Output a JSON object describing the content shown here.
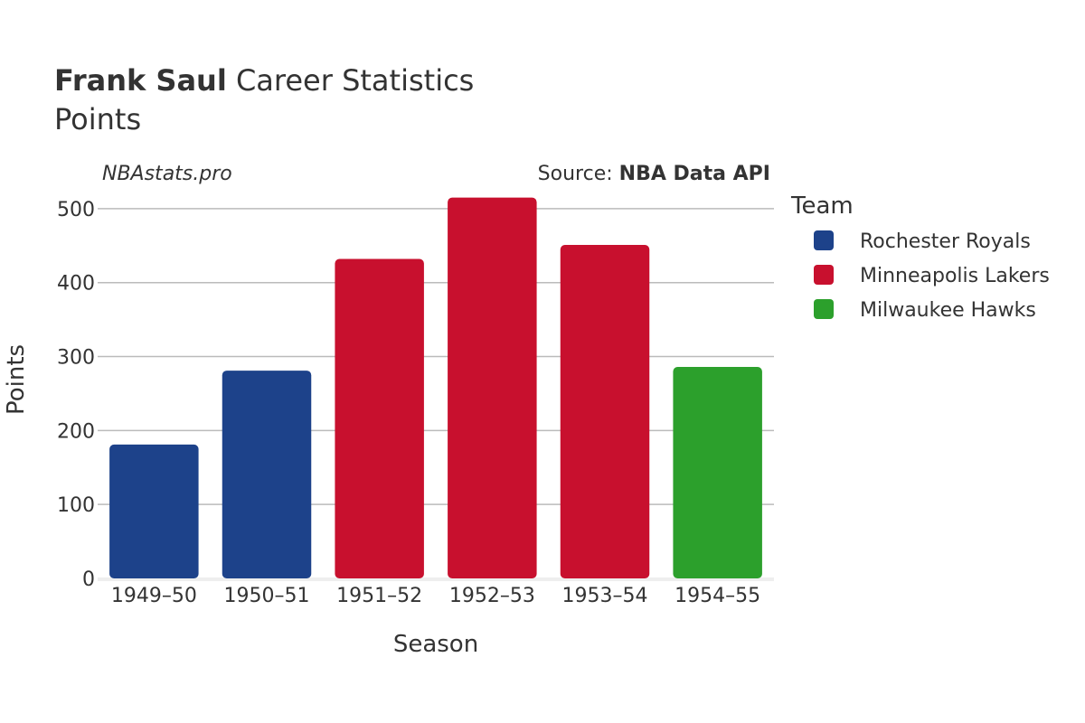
{
  "chart_data": {
    "type": "bar",
    "title_bold": "Frank Saul",
    "title_rest": "Career Statistics",
    "subtitle": "Points",
    "watermark": "NBAstats.pro",
    "source_label": "Source:",
    "source_name": "NBA Data API",
    "xlabel": "Season",
    "ylabel": "Points",
    "ylim": [
      0,
      550
    ],
    "yticks": [
      0,
      100,
      200,
      300,
      400,
      500
    ],
    "grid": true,
    "legend_title": "Team",
    "legend_position": "right",
    "categories": [
      "1949–50",
      "1950–51",
      "1951–52",
      "1952–53",
      "1953–54",
      "1954–55"
    ],
    "values": [
      181,
      281,
      432,
      515,
      451,
      286
    ],
    "bar_teams": [
      "Rochester Royals",
      "Rochester Royals",
      "Minneapolis Lakers",
      "Minneapolis Lakers",
      "Minneapolis Lakers",
      "Milwaukee Hawks"
    ],
    "teams": [
      {
        "name": "Rochester Royals",
        "color": "#1d428a"
      },
      {
        "name": "Minneapolis Lakers",
        "color": "#c8102e"
      },
      {
        "name": "Milwaukee Hawks",
        "color": "#2ca02c"
      }
    ]
  }
}
